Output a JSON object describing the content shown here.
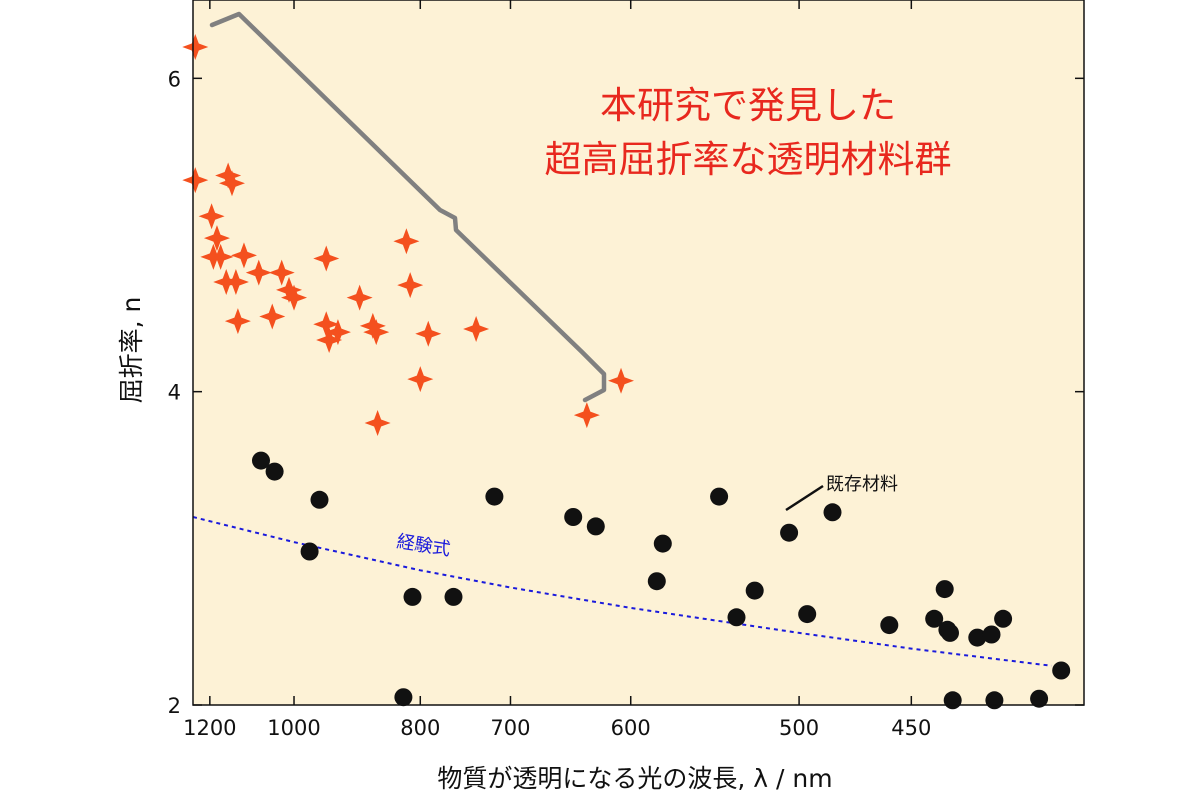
{
  "chart_data": {
    "type": "scatter",
    "xlabel": "物質が透明になる光の波長, λ / nm",
    "ylabel": "屈折率, n",
    "x_scale": "reciprocal",
    "xlim": [
      1250,
      390
    ],
    "ylim": [
      2,
      6.5
    ],
    "x_ticks": [
      1200,
      1000,
      800,
      700,
      600,
      500,
      450
    ],
    "x_tick_labels": [
      "1200",
      "1000",
      "800",
      "700",
      "600",
      "500",
      "450"
    ],
    "y_ticks": [
      2,
      4,
      6
    ],
    "y_tick_labels": [
      "2",
      "4",
      "6"
    ],
    "grid": false,
    "background_color": "#fdf2d6",
    "series": [
      {
        "marker": "four-point-star",
        "color": "#f4501e",
        "points": [
          [
            1243,
            6.2
          ],
          [
            1243,
            5.35
          ],
          [
            1195,
            5.12
          ],
          [
            1180,
            4.98
          ],
          [
            1190,
            4.86
          ],
          [
            1170,
            4.86
          ],
          [
            1150,
            5.38
          ],
          [
            1140,
            5.33
          ],
          [
            1155,
            4.7
          ],
          [
            1130,
            4.7
          ],
          [
            1110,
            4.87
          ],
          [
            1125,
            4.45
          ],
          [
            1075,
            4.76
          ],
          [
            1025,
            4.76
          ],
          [
            1045,
            4.48
          ],
          [
            1010,
            4.65
          ],
          [
            1000,
            4.6
          ],
          [
            940,
            4.85
          ],
          [
            940,
            4.43
          ],
          [
            935,
            4.33
          ],
          [
            920,
            4.38
          ],
          [
            885,
            4.6
          ],
          [
            865,
            4.42
          ],
          [
            860,
            4.38
          ],
          [
            858,
            3.8
          ],
          [
            818,
            4.96
          ],
          [
            813,
            4.68
          ],
          [
            800,
            4.08
          ],
          [
            790,
            4.37
          ],
          [
            735,
            4.4
          ],
          [
            633,
            3.85
          ],
          [
            607,
            4.07
          ]
        ]
      },
      {
        "name": "既存材料",
        "marker": "circle",
        "color": "#111111",
        "points": [
          [
            1070,
            3.56
          ],
          [
            1040,
            3.49
          ],
          [
            952,
            3.31
          ],
          [
            970,
            2.98
          ],
          [
            810,
            2.69
          ],
          [
            822,
            2.05
          ],
          [
            760,
            2.69
          ],
          [
            716,
            3.33
          ],
          [
            644,
            3.2
          ],
          [
            626,
            3.14
          ],
          [
            582,
            2.79
          ],
          [
            578,
            3.03
          ],
          [
            543,
            3.33
          ],
          [
            533,
            2.56
          ],
          [
            523,
            2.73
          ],
          [
            505,
            3.1
          ],
          [
            496,
            2.58
          ],
          [
            484,
            3.23
          ],
          [
            459,
            2.51
          ],
          [
            441,
            2.55
          ],
          [
            437,
            2.74
          ],
          [
            436,
            2.48
          ],
          [
            435,
            2.46
          ],
          [
            434,
            2.03
          ],
          [
            425,
            2.43
          ],
          [
            420,
            2.45
          ],
          [
            419,
            2.03
          ],
          [
            416,
            2.55
          ],
          [
            404,
            2.04
          ],
          [
            397,
            2.22
          ]
        ]
      },
      {
        "name": "経験式",
        "type": "line",
        "style": "dotted",
        "color": "#1a1adc",
        "points": [
          [
            1250,
            3.2
          ],
          [
            1000,
            3.04
          ],
          [
            900,
            2.96
          ],
          [
            800,
            2.86
          ],
          [
            700,
            2.75
          ],
          [
            600,
            2.62
          ],
          [
            500,
            2.46
          ],
          [
            450,
            2.36
          ],
          [
            400,
            2.25
          ]
        ]
      }
    ],
    "annotations": [
      {
        "text": "本研究で発見した",
        "color": "#e8281e"
      },
      {
        "text": "超高屈折率な透明材料群",
        "color": "#e8281e"
      },
      {
        "text": "既存材料",
        "color": "#111111"
      },
      {
        "text": "経験式",
        "color": "#1a1adc"
      }
    ]
  }
}
